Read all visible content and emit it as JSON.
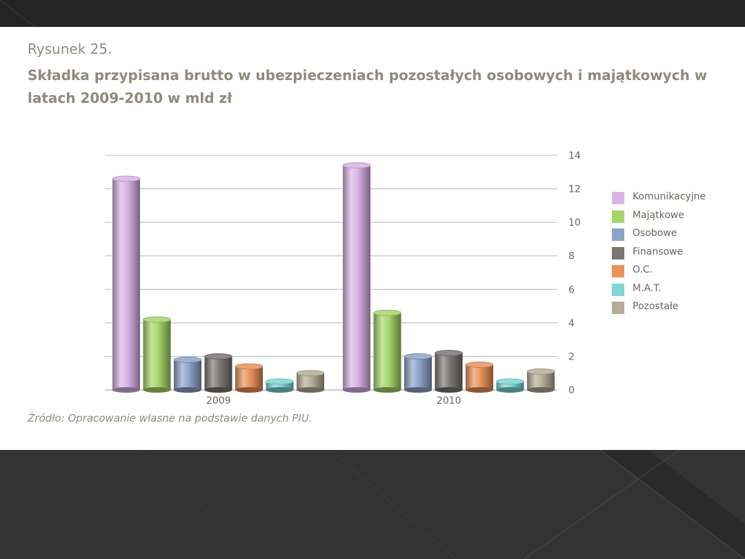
{
  "slide": {
    "caption": "Rysunek 25.",
    "title": "Składka przypisana brutto w ubezpieczeniach pozostałych osobowych i majątkowych w latach 2009-2010 w mld zł",
    "source": "Źródło: Opracowanie własne na podstawie danych PIU."
  },
  "chart_data": {
    "type": "bar",
    "categories": [
      "2009",
      "2010"
    ],
    "series": [
      {
        "name": "Komunikacyjne",
        "color": "#d9b3e6",
        "values": [
          12.6,
          13.4
        ]
      },
      {
        "name": "Majątkowe",
        "color": "#a6d66b",
        "values": [
          4.2,
          4.6
        ]
      },
      {
        "name": "Osobowe",
        "color": "#8ea3c8",
        "values": [
          1.8,
          2.0
        ]
      },
      {
        "name": "Finansowe",
        "color": "#7a7672",
        "values": [
          2.0,
          2.2
        ]
      },
      {
        "name": "O.C.",
        "color": "#e8935a",
        "values": [
          1.4,
          1.5
        ]
      },
      {
        "name": "M.A.T.",
        "color": "#7fd6d6",
        "values": [
          0.5,
          0.5
        ]
      },
      {
        "name": "Pozostałe",
        "color": "#b5ad95",
        "values": [
          1.0,
          1.1
        ]
      }
    ],
    "ylim": [
      0,
      14
    ],
    "yticks": [
      0,
      2,
      4,
      6,
      8,
      10,
      12,
      14
    ],
    "grid": true,
    "legend_position": "right"
  }
}
